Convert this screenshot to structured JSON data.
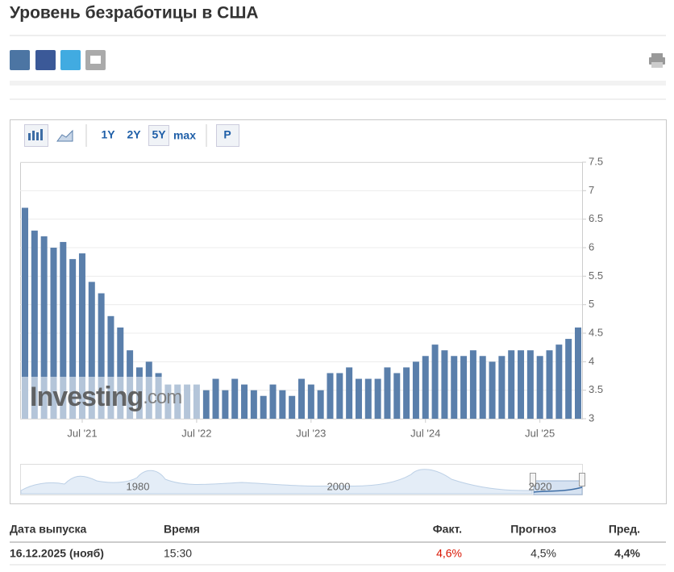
{
  "header": {
    "title": "Уровень безработицы в США"
  },
  "toolbar": {
    "ranges": [
      "1Y",
      "2Y",
      "5Y",
      "max"
    ],
    "p_button": "P"
  },
  "chart_data": {
    "type": "bar",
    "categories": [
      null,
      null,
      null,
      null,
      null,
      null,
      "Jul '21",
      null,
      null,
      null,
      null,
      null,
      null,
      null,
      null,
      null,
      null,
      null,
      "Jul '22",
      null,
      null,
      null,
      null,
      null,
      null,
      null,
      null,
      null,
      null,
      null,
      "Jul '23",
      null,
      null,
      null,
      null,
      null,
      null,
      null,
      null,
      null,
      null,
      null,
      "Jul '24",
      null,
      null,
      null,
      null,
      null,
      null,
      null,
      null,
      null,
      null,
      null,
      "Jul '25",
      null,
      null,
      null,
      null
    ],
    "values": [
      6.7,
      6.3,
      6.2,
      6.0,
      6.1,
      5.8,
      5.9,
      5.4,
      5.2,
      4.8,
      4.6,
      4.2,
      3.9,
      4.0,
      3.8,
      3.6,
      3.6,
      3.6,
      3.6,
      3.5,
      3.7,
      3.5,
      3.7,
      3.6,
      3.5,
      3.4,
      3.6,
      3.5,
      3.4,
      3.7,
      3.6,
      3.5,
      3.8,
      3.8,
      3.9,
      3.7,
      3.7,
      3.7,
      3.9,
      3.8,
      3.9,
      4.0,
      4.1,
      4.3,
      4.2,
      4.1,
      4.1,
      4.2,
      4.1,
      4.0,
      4.1,
      4.2,
      4.2,
      4.2,
      4.1,
      4.2,
      4.3,
      4.4,
      4.6
    ],
    "color": "#5a7fab",
    "ylim": [
      3,
      7.5
    ],
    "yticks": [
      3,
      3.5,
      4,
      4.5,
      5,
      5.5,
      6,
      6.5,
      7,
      7.5
    ],
    "grid": true
  },
  "watermark": {
    "brand": "Investing",
    "suffix": ".com"
  },
  "navigator": {
    "labels": [
      "1980",
      "2000",
      "2020"
    ]
  },
  "table": {
    "columns": [
      "Дата выпуска",
      "Время",
      "Факт.",
      "Прогноз",
      "Пред."
    ],
    "rows": [
      [
        "16.12.2025 (нояб)",
        "15:30",
        "4,6%",
        "4,5%",
        "4,4%"
      ]
    ]
  }
}
